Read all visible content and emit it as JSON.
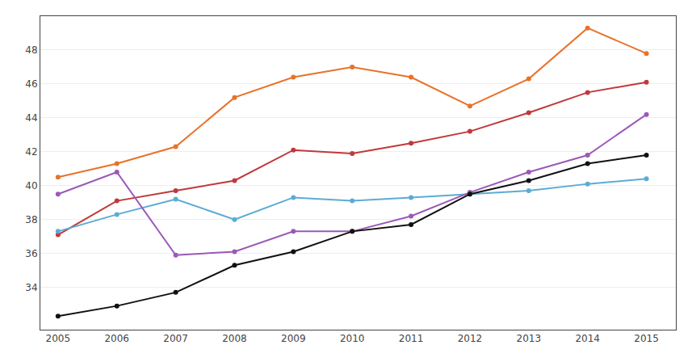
{
  "chart_data": {
    "type": "line",
    "x": [
      2005,
      2006,
      2007,
      2008,
      2009,
      2010,
      2011,
      2012,
      2013,
      2014,
      2015
    ],
    "series": [
      {
        "color": "#E8722A",
        "values": [
          40.5,
          41.3,
          42.3,
          45.2,
          46.4,
          47.0,
          46.4,
          44.7,
          46.3,
          49.3,
          47.8
        ]
      },
      {
        "color": "#C0393B",
        "values": [
          37.1,
          39.1,
          39.7,
          40.3,
          42.1,
          41.9,
          42.5,
          43.2,
          44.3,
          45.5,
          46.1
        ]
      },
      {
        "color": "#5BACD4",
        "values": [
          37.3,
          38.3,
          39.2,
          38.0,
          39.3,
          39.1,
          39.3,
          39.5,
          39.7,
          40.1,
          40.4
        ]
      },
      {
        "color": "#9B59B6",
        "values": [
          39.5,
          40.8,
          35.9,
          36.1,
          37.3,
          37.3,
          38.2,
          39.6,
          40.8,
          41.8,
          44.2
        ]
      },
      {
        "color": "#111111",
        "values": [
          32.3,
          32.9,
          33.7,
          35.3,
          36.1,
          37.3,
          37.7,
          39.5,
          40.3,
          41.3,
          41.8
        ]
      }
    ],
    "xlim": [
      2004.7,
      2015.5
    ],
    "xticks": [
      2005,
      2006,
      2007,
      2008,
      2009,
      2010,
      2011,
      2012,
      2013,
      2014,
      2015
    ],
    "ylim": [
      31.5,
      50.0
    ],
    "yticks": [
      34,
      36,
      38,
      40,
      42,
      44,
      46,
      48
    ],
    "grid": true,
    "marker": "circle"
  }
}
